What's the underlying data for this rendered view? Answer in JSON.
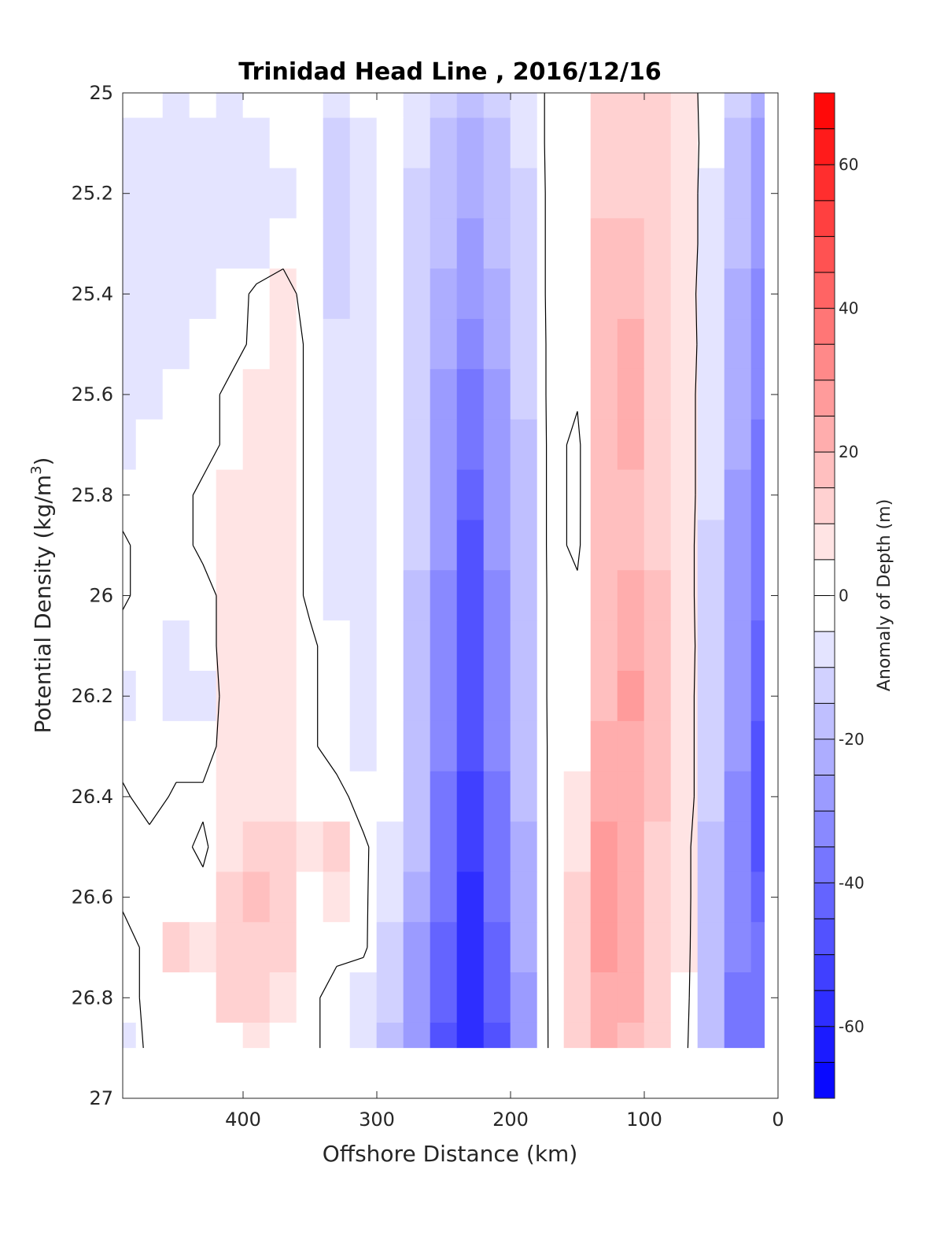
{
  "chart_data": {
    "type": "heatmap",
    "title": "Trinidad Head Line , 2016/12/16",
    "xlabel": "Offshore Distance (km)",
    "ylabel_main": "Potential Density (kg/m",
    "ylabel_sup": "3",
    "ylabel_close": ")",
    "colorbar_label": "Anomaly of Depth (m)",
    "x_axis": {
      "reversed": true,
      "xlim": [
        0,
        490
      ],
      "ticks": [
        400,
        300,
        200,
        100,
        0
      ],
      "tick_labels": [
        "400",
        "300",
        "200",
        "100",
        "0"
      ]
    },
    "y_axis": {
      "reversed": true,
      "ylim": [
        25,
        27
      ],
      "ticks": [
        25,
        25.2,
        25.4,
        25.6,
        25.8,
        26,
        26.2,
        26.4,
        26.6,
        26.8,
        27
      ],
      "tick_labels": [
        "25",
        "25.2",
        "25.4",
        "25.6",
        "25.8",
        "26",
        "26.2",
        "26.4",
        "26.6",
        "26.8",
        "27"
      ]
    },
    "colorbar": {
      "range": [
        -70,
        70
      ],
      "levels": 28,
      "ticks": [
        60,
        40,
        20,
        0,
        -20,
        -40,
        -60
      ],
      "tick_labels": [
        "60",
        "40",
        "20",
        "0",
        "-20",
        "-40",
        "-60"
      ],
      "low_color": "#0000ff",
      "high_color": "#ff0000",
      "mid_color": "#ffffff"
    },
    "zero_contour": true,
    "data_extent": {
      "x": [
        10,
        490
      ],
      "y": [
        25,
        26.9
      ]
    },
    "x": [
      490,
      470,
      450,
      430,
      410,
      390,
      370,
      350,
      330,
      310,
      290,
      270,
      250,
      230,
      210,
      190,
      170,
      150,
      130,
      110,
      90,
      70,
      50,
      30,
      10
    ],
    "y": [
      25.0,
      25.1,
      25.2,
      25.3,
      25.4,
      25.5,
      25.6,
      25.7,
      25.8,
      25.9,
      26.0,
      26.1,
      26.2,
      26.3,
      26.4,
      26.5,
      26.6,
      26.7,
      26.8,
      26.9
    ],
    "z": [
      [
        -5,
        -5,
        -10,
        -5,
        -10,
        -5,
        -5,
        -5,
        -10,
        -5,
        -5,
        -10,
        -15,
        -20,
        -15,
        -10,
        3,
        3,
        12,
        13,
        10,
        5,
        -5,
        -15,
        -25
      ],
      [
        -8,
        -8,
        -10,
        -8,
        -10,
        -8,
        -5,
        -5,
        -12,
        -8,
        -5,
        -10,
        -18,
        -22,
        -18,
        -10,
        3,
        3,
        13,
        14,
        11,
        6,
        -5,
        -18,
        -28
      ],
      [
        -8,
        -10,
        -10,
        -8,
        -10,
        -10,
        -8,
        -5,
        -12,
        -8,
        -5,
        -12,
        -20,
        -25,
        -20,
        -12,
        3,
        0,
        14,
        14,
        11,
        6,
        -6,
        -20,
        -30
      ],
      [
        -10,
        -10,
        -10,
        -8,
        -8,
        -8,
        -5,
        -5,
        -12,
        -8,
        -5,
        -12,
        -20,
        -28,
        -20,
        -12,
        3,
        0,
        15,
        15,
        12,
        6,
        -6,
        -20,
        -30
      ],
      [
        -8,
        -8,
        -8,
        -8,
        -5,
        2,
        5,
        -5,
        -12,
        -8,
        -5,
        -12,
        -22,
        -30,
        -22,
        -12,
        3,
        0,
        15,
        18,
        13,
        6,
        -8,
        -22,
        -32
      ],
      [
        -8,
        -8,
        -8,
        -5,
        -5,
        3,
        6,
        -2,
        -10,
        -8,
        -5,
        -12,
        -24,
        -34,
        -24,
        -14,
        3,
        1,
        16,
        20,
        14,
        7,
        -8,
        -22,
        -34
      ],
      [
        -8,
        -8,
        -5,
        -5,
        3,
        5,
        6,
        -2,
        -8,
        -8,
        -5,
        -14,
        -26,
        -38,
        -26,
        -14,
        3,
        1,
        16,
        22,
        14,
        7,
        -10,
        -24,
        -34
      ],
      [
        -8,
        -5,
        -5,
        -5,
        3,
        5,
        6,
        -2,
        -8,
        -8,
        -5,
        -14,
        -28,
        -40,
        -28,
        -16,
        3,
        -2,
        16,
        20,
        14,
        7,
        -10,
        -24,
        -36
      ],
      [
        -5,
        -5,
        -5,
        3,
        5,
        5,
        6,
        -2,
        -8,
        -8,
        -5,
        -14,
        -30,
        -44,
        -30,
        -16,
        3,
        -2,
        16,
        18,
        14,
        7,
        -10,
        -26,
        -38
      ],
      [
        2,
        -5,
        -5,
        3,
        5,
        5,
        6,
        -2,
        -8,
        -8,
        -5,
        -14,
        -30,
        -46,
        -30,
        -16,
        3,
        -2,
        17,
        18,
        14,
        7,
        -12,
        -26,
        -38
      ],
      [
        2,
        -5,
        -5,
        -5,
        5,
        5,
        6,
        -2,
        -8,
        -8,
        -5,
        -16,
        -32,
        -48,
        -32,
        -18,
        3,
        2,
        17,
        20,
        15,
        7,
        -12,
        -28,
        -40
      ],
      [
        -5,
        -5,
        -8,
        -5,
        5,
        5,
        6,
        2,
        -5,
        -8,
        -5,
        -16,
        -32,
        -48,
        -32,
        -18,
        3,
        2,
        18,
        24,
        17,
        8,
        -12,
        -28,
        -42
      ],
      [
        -8,
        -5,
        -8,
        -8,
        5,
        5,
        6,
        2,
        -5,
        -8,
        -5,
        -16,
        -34,
        -50,
        -34,
        -18,
        3,
        2,
        18,
        26,
        18,
        8,
        -14,
        -30,
        -44
      ],
      [
        -5,
        -5,
        -5,
        -5,
        5,
        5,
        6,
        2,
        -5,
        -8,
        -5,
        -18,
        -34,
        -50,
        -34,
        -20,
        3,
        4,
        20,
        24,
        17,
        8,
        -14,
        -30,
        -46
      ],
      [
        2,
        -5,
        2,
        2,
        5,
        8,
        8,
        2,
        4,
        -5,
        -5,
        -18,
        -36,
        -52,
        -36,
        -20,
        3,
        6,
        24,
        22,
        15,
        8,
        -14,
        -32,
        -50
      ],
      [
        2,
        4,
        3,
        -2,
        8,
        14,
        10,
        5,
        10,
        2,
        -8,
        -20,
        -38,
        -54,
        -38,
        -22,
        3,
        8,
        26,
        22,
        14,
        5,
        -16,
        -34,
        -50
      ],
      [
        2,
        4,
        3,
        3,
        10,
        18,
        12,
        4,
        6,
        2,
        -10,
        -22,
        -40,
        -56,
        -40,
        -22,
        3,
        10,
        26,
        22,
        14,
        5,
        -16,
        -34,
        -44
      ],
      [
        -5,
        3,
        10,
        6,
        12,
        14,
        10,
        3,
        3,
        2,
        -12,
        -26,
        -42,
        -58,
        -42,
        -24,
        3,
        10,
        26,
        22,
        14,
        5,
        -18,
        -34,
        -40
      ],
      [
        -5,
        3,
        3,
        3,
        10,
        12,
        8,
        3,
        -5,
        -8,
        -14,
        -28,
        -44,
        -60,
        -44,
        -26,
        3,
        10,
        24,
        20,
        12,
        4,
        -18,
        -36,
        -40
      ],
      [
        -10,
        3,
        3,
        3,
        3,
        6,
        4,
        3,
        -5,
        -10,
        -16,
        -30,
        -46,
        -60,
        -46,
        -28,
        3,
        10,
        22,
        18,
        10,
        3,
        -20,
        -36,
        -40
      ]
    ]
  }
}
